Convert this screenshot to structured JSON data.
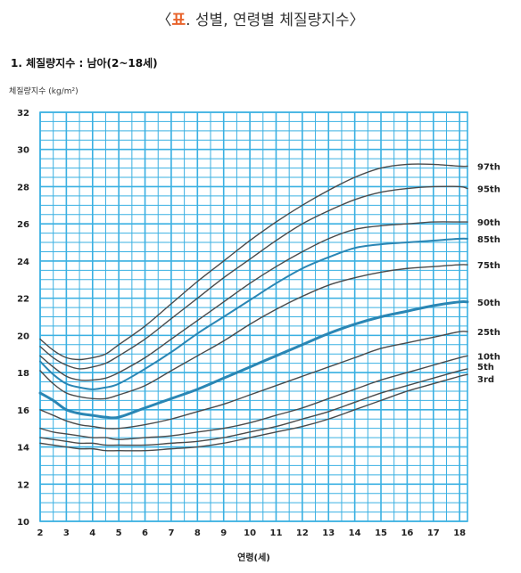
{
  "header": {
    "bracket_open": "〈",
    "title_accent": "표",
    "title_rest": ". 성별, 연령별 체질량지수",
    "bracket_close": "〉"
  },
  "section": {
    "title": "1. 체질량지수 : 남아(2~18세)"
  },
  "colors": {
    "accent": "#e8632b",
    "grid": "#3ab0e2",
    "curve": "#4a4a4a",
    "highlight": "#2a86b4"
  },
  "chart_data": {
    "type": "line",
    "ylabel": "체질량지수 (kg/m²)",
    "xlabel": "연령(세)",
    "xlim": [
      2,
      18.3
    ],
    "ylim": [
      10,
      32
    ],
    "xticks": [
      2,
      3,
      4,
      5,
      6,
      7,
      8,
      9,
      10,
      11,
      12,
      13,
      14,
      15,
      16,
      17,
      18
    ],
    "yticks": [
      10,
      12,
      14,
      16,
      18,
      20,
      22,
      24,
      26,
      28,
      30,
      32
    ],
    "grid": true,
    "x": [
      2,
      2.5,
      3,
      3.5,
      4,
      4.5,
      5,
      6,
      7,
      8,
      9,
      10,
      11,
      12,
      13,
      14,
      15,
      16,
      17,
      18,
      18.3
    ],
    "series": [
      {
        "name": "97th",
        "values": [
          19.8,
          19.2,
          18.8,
          18.7,
          18.8,
          19.0,
          19.5,
          20.5,
          21.7,
          22.9,
          24.0,
          25.1,
          26.1,
          27.0,
          27.8,
          28.5,
          29.0,
          29.2,
          29.2,
          29.1,
          29.1
        ]
      },
      {
        "name": "95th",
        "values": [
          19.4,
          18.8,
          18.4,
          18.2,
          18.3,
          18.5,
          18.9,
          19.8,
          20.9,
          22.0,
          23.1,
          24.1,
          25.1,
          26.0,
          26.7,
          27.3,
          27.7,
          27.9,
          28.0,
          28.0,
          27.9
        ]
      },
      {
        "name": "90th",
        "values": [
          18.9,
          18.3,
          17.8,
          17.6,
          17.6,
          17.7,
          18.0,
          18.8,
          19.8,
          20.8,
          21.8,
          22.8,
          23.7,
          24.5,
          25.2,
          25.7,
          25.9,
          26.0,
          26.1,
          26.1,
          26.1
        ]
      },
      {
        "name": "85th",
        "values": [
          18.6,
          17.9,
          17.4,
          17.2,
          17.1,
          17.2,
          17.4,
          18.2,
          19.1,
          20.1,
          21.0,
          21.9,
          22.8,
          23.6,
          24.2,
          24.7,
          24.9,
          25.0,
          25.1,
          25.2,
          25.2
        ]
      },
      {
        "name": "75th",
        "values": [
          18.1,
          17.4,
          16.9,
          16.7,
          16.6,
          16.6,
          16.8,
          17.3,
          18.1,
          18.9,
          19.7,
          20.6,
          21.4,
          22.1,
          22.7,
          23.1,
          23.4,
          23.6,
          23.7,
          23.8,
          23.8
        ]
      },
      {
        "name": "50th",
        "values": [
          16.9,
          16.5,
          16.0,
          15.8,
          15.7,
          15.6,
          15.6,
          16.1,
          16.6,
          17.1,
          17.7,
          18.3,
          18.9,
          19.5,
          20.1,
          20.6,
          21.0,
          21.3,
          21.6,
          21.8,
          21.8
        ]
      },
      {
        "name": "25th",
        "values": [
          16.0,
          15.7,
          15.4,
          15.2,
          15.1,
          15.0,
          15.0,
          15.2,
          15.5,
          15.9,
          16.3,
          16.8,
          17.3,
          17.8,
          18.3,
          18.8,
          19.3,
          19.6,
          19.9,
          20.2,
          20.2
        ]
      },
      {
        "name": "10th",
        "values": [
          15.0,
          14.8,
          14.7,
          14.6,
          14.5,
          14.5,
          14.4,
          14.5,
          14.6,
          14.8,
          15.0,
          15.3,
          15.7,
          16.1,
          16.6,
          17.1,
          17.6,
          18.0,
          18.4,
          18.8,
          18.9
        ]
      },
      {
        "name": "5th",
        "values": [
          14.5,
          14.4,
          14.3,
          14.2,
          14.2,
          14.1,
          14.1,
          14.1,
          14.2,
          14.3,
          14.5,
          14.8,
          15.1,
          15.5,
          15.9,
          16.4,
          16.9,
          17.3,
          17.7,
          18.1,
          18.2
        ]
      },
      {
        "name": "3rd",
        "values": [
          14.2,
          14.1,
          14.0,
          13.9,
          13.9,
          13.8,
          13.8,
          13.8,
          13.9,
          14.0,
          14.2,
          14.5,
          14.8,
          15.1,
          15.5,
          16.0,
          16.5,
          17.0,
          17.4,
          17.8,
          17.9
        ]
      }
    ]
  }
}
